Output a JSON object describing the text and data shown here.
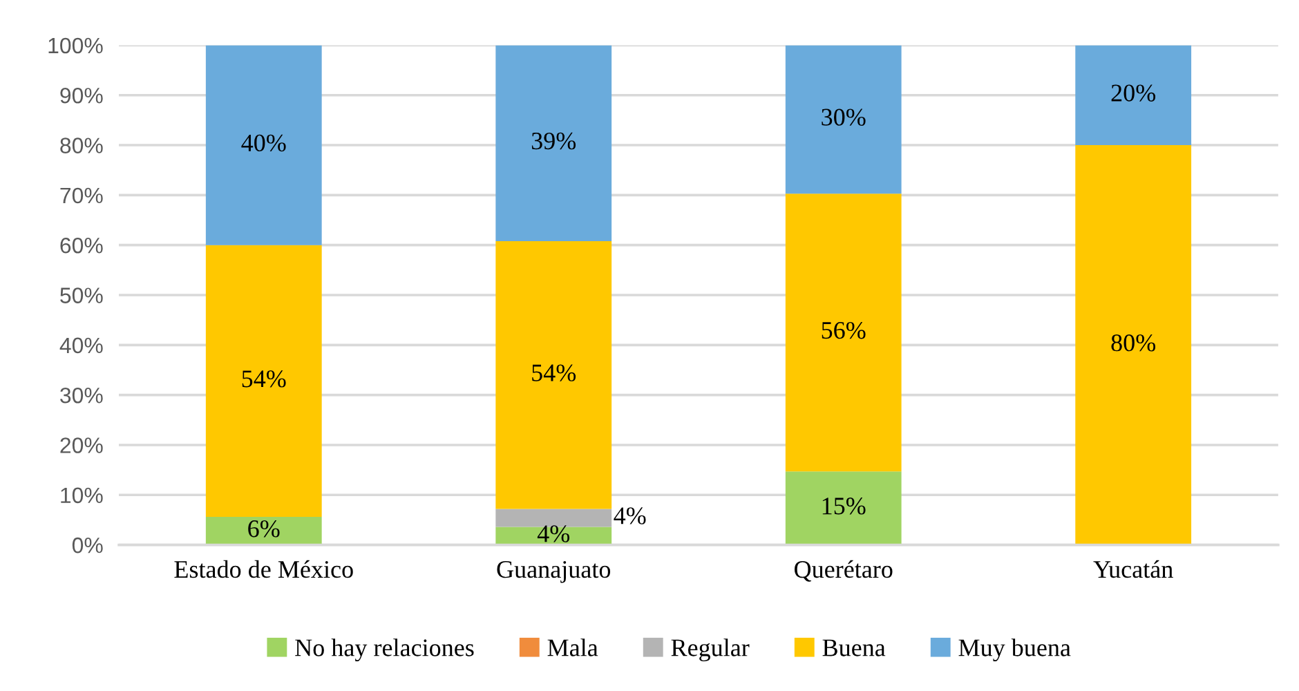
{
  "chart_data": {
    "type": "bar",
    "stacked": true,
    "categories": [
      "Estado de México",
      "Guanajuato",
      "Querétaro",
      "Yucatán"
    ],
    "series": [
      {
        "name": "No hay relaciones",
        "color": "#a0d462",
        "values": [
          5.6,
          3.6,
          14.7,
          null
        ],
        "value_labels": [
          "6%",
          "4%",
          "15%",
          null
        ]
      },
      {
        "name": "Mala",
        "color": "#f08c3c",
        "values": [
          null,
          null,
          null,
          null
        ]
      },
      {
        "name": "Regular",
        "color": "#b4b4b4",
        "values": [
          null,
          3.6,
          null,
          null
        ],
        "value_labels": [
          null,
          "4%",
          null,
          null
        ]
      },
      {
        "name": "Buena",
        "color": "#ffc800",
        "values": [
          54.4,
          53.6,
          55.6,
          80.0
        ],
        "value_labels": [
          "54%",
          "54%",
          "56%",
          "80%"
        ]
      },
      {
        "name": "Muy buena",
        "color": "#6aabdc",
        "values": [
          40.0,
          39.2,
          29.7,
          20.0
        ],
        "value_labels": [
          "40%",
          "39%",
          "30%",
          "20%"
        ]
      }
    ],
    "ylim": [
      0,
      100
    ],
    "yticks": [
      {
        "value": 0,
        "label": "0%"
      },
      {
        "value": 10,
        "label": "10%"
      },
      {
        "value": 20,
        "label": "20%"
      },
      {
        "value": 30,
        "label": "30%"
      },
      {
        "value": 40,
        "label": "40%"
      },
      {
        "value": 50,
        "label": "50%"
      },
      {
        "value": 60,
        "label": "60%"
      },
      {
        "value": 70,
        "label": "70%"
      },
      {
        "value": 80,
        "label": "80%"
      },
      {
        "value": 90,
        "label": "90%"
      },
      {
        "value": 100,
        "label": "100%"
      }
    ],
    "grid": "y",
    "legend": "bottom"
  }
}
